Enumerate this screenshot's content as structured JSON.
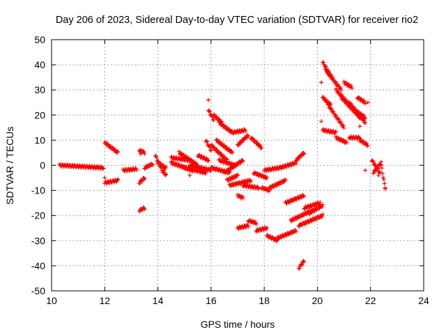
{
  "chart_data": {
    "type": "scatter",
    "title": "Day 206 of 2023, Sidereal Day-to-day VTEC variation (SDTVAR) for receiver rio2",
    "xlabel": "GPS time / hours",
    "ylabel": "SDTVAR / TECUs",
    "xlim": [
      10,
      24
    ],
    "ylim": [
      -50,
      50
    ],
    "xticks": [
      10,
      12,
      14,
      16,
      18,
      20,
      22,
      24
    ],
    "yticks": [
      -50,
      -40,
      -30,
      -20,
      -10,
      0,
      10,
      20,
      30,
      40,
      50
    ],
    "xtick_labels": [
      "10",
      "12",
      "14",
      "16",
      "18",
      "20",
      "22",
      "24"
    ],
    "ytick_labels": [
      "-50",
      "-40",
      "-30",
      "-20",
      "-10",
      "0",
      "10",
      "20",
      "30",
      "40",
      "50"
    ],
    "grid": true,
    "marker": "+",
    "series_color": "#ff0000",
    "segments": [
      {
        "x0": 10.3,
        "x1": 11.95,
        "y0": 0.0,
        "y1": -1.0
      },
      {
        "x0": 12.0,
        "x1": 12.5,
        "y0": -7.0,
        "y1": -6.0
      },
      {
        "x0": 12.0,
        "x1": 12.5,
        "y0": 9.0,
        "y1": 5.0
      },
      {
        "x0": 12.7,
        "x1": 13.2,
        "y0": -2.0,
        "y1": -1.5
      },
      {
        "x0": 13.3,
        "x1": 13.5,
        "y0": 6.0,
        "y1": 5.0
      },
      {
        "x0": 13.3,
        "x1": 13.5,
        "y0": -7.0,
        "y1": -5.0
      },
      {
        "x0": 13.3,
        "x1": 13.5,
        "y0": -18.0,
        "y1": -17.0
      },
      {
        "x0": 13.5,
        "x1": 13.8,
        "y0": -1.0,
        "y1": 0.5
      },
      {
        "x0": 13.9,
        "x1": 14.2,
        "y0": 4.0,
        "y1": -3.0
      },
      {
        "x0": 14.0,
        "x1": 14.3,
        "y0": 1.0,
        "y1": -1.0
      },
      {
        "x0": 14.2,
        "x1": 14.3,
        "y0": -2.0,
        "y1": -4.0
      },
      {
        "x0": 14.5,
        "x1": 15.2,
        "y0": 3.0,
        "y1": 2.0
      },
      {
        "x0": 14.5,
        "x1": 15.3,
        "y0": 1.0,
        "y1": -2.0
      },
      {
        "x0": 14.8,
        "x1": 15.5,
        "y0": 5.0,
        "y1": 0.0
      },
      {
        "x0": 15.0,
        "x1": 15.8,
        "y0": -1.0,
        "y1": -3.0
      },
      {
        "x0": 15.2,
        "x1": 16.0,
        "y0": 0.0,
        "y1": -2.0
      },
      {
        "x0": 15.5,
        "x1": 15.9,
        "y0": 4.0,
        "y1": 2.0
      },
      {
        "x0": 15.8,
        "x1": 16.0,
        "y0": 10.0,
        "y1": 6.0
      },
      {
        "x0": 15.9,
        "x1": 16.1,
        "y0": 22.0,
        "y1": 18.0
      },
      {
        "x0": 16.1,
        "x1": 16.4,
        "y0": 20.0,
        "y1": 17.0
      },
      {
        "x0": 16.3,
        "x1": 16.8,
        "y0": 17.0,
        "y1": 13.0
      },
      {
        "x0": 16.8,
        "x1": 17.3,
        "y0": 13.0,
        "y1": 14.0
      },
      {
        "x0": 16.0,
        "x1": 16.6,
        "y0": 8.0,
        "y1": 2.0
      },
      {
        "x0": 16.2,
        "x1": 16.8,
        "y0": 10.0,
        "y1": 5.0
      },
      {
        "x0": 16.0,
        "x1": 16.7,
        "y0": -1.0,
        "y1": -3.0
      },
      {
        "x0": 16.3,
        "x1": 16.9,
        "y0": 2.0,
        "y1": 0.0
      },
      {
        "x0": 16.5,
        "x1": 17.2,
        "y0": -3.0,
        "y1": 2.0
      },
      {
        "x0": 16.6,
        "x1": 17.0,
        "y0": -6.0,
        "y1": -4.0
      },
      {
        "x0": 17.0,
        "x1": 17.4,
        "y0": 8.0,
        "y1": 12.0
      },
      {
        "x0": 17.5,
        "x1": 17.9,
        "y0": 11.0,
        "y1": 7.0
      },
      {
        "x0": 16.7,
        "x1": 17.5,
        "y0": -8.0,
        "y1": -6.0
      },
      {
        "x0": 17.2,
        "x1": 17.8,
        "y0": -8.0,
        "y1": -9.0
      },
      {
        "x0": 17.0,
        "x1": 17.2,
        "y0": -12.0,
        "y1": -13.0
      },
      {
        "x0": 17.9,
        "x1": 18.2,
        "y0": -9.0,
        "y1": -10.0
      },
      {
        "x0": 17.6,
        "x1": 18.1,
        "y0": -3.0,
        "y1": -5.0
      },
      {
        "x0": 18.0,
        "x1": 18.6,
        "y0": -2.0,
        "y1": -1.0
      },
      {
        "x0": 18.2,
        "x1": 18.8,
        "y0": -9.0,
        "y1": -6.0
      },
      {
        "x0": 18.6,
        "x1": 19.2,
        "y0": -1.0,
        "y1": 1.0
      },
      {
        "x0": 19.2,
        "x1": 19.5,
        "y0": 2.0,
        "y1": 5.0
      },
      {
        "x0": 17.0,
        "x1": 17.4,
        "y0": -25.0,
        "y1": -24.0
      },
      {
        "x0": 17.4,
        "x1": 17.7,
        "y0": -22.0,
        "y1": -23.0
      },
      {
        "x0": 17.7,
        "x1": 18.1,
        "y0": -26.0,
        "y1": -25.0
      },
      {
        "x0": 18.1,
        "x1": 18.5,
        "y0": -28.0,
        "y1": -30.0
      },
      {
        "x0": 18.5,
        "x1": 19.2,
        "y0": -29.0,
        "y1": -26.0
      },
      {
        "x0": 18.8,
        "x1": 19.5,
        "y0": -15.0,
        "y1": -12.0
      },
      {
        "x0": 19.0,
        "x1": 19.8,
        "y0": -22.0,
        "y1": -18.0
      },
      {
        "x0": 19.3,
        "x1": 20.2,
        "y0": -24.0,
        "y1": -20.0
      },
      {
        "x0": 19.5,
        "x1": 20.1,
        "y0": -17.0,
        "y1": -15.0
      },
      {
        "x0": 19.7,
        "x1": 20.2,
        "y0": -19.0,
        "y1": -16.0
      },
      {
        "x0": 19.3,
        "x1": 19.5,
        "y0": -41.0,
        "y1": -38.0
      },
      {
        "x0": 20.2,
        "x1": 20.6,
        "y0": 41.0,
        "y1": 34.0
      },
      {
        "x0": 20.3,
        "x1": 20.9,
        "y0": 38.0,
        "y1": 30.0
      },
      {
        "x0": 20.2,
        "x1": 20.5,
        "y0": 27.0,
        "y1": 24.0
      },
      {
        "x0": 20.4,
        "x1": 21.0,
        "y0": 24.0,
        "y1": 15.0
      },
      {
        "x0": 20.7,
        "x1": 21.3,
        "y0": 30.0,
        "y1": 23.0
      },
      {
        "x0": 20.9,
        "x1": 21.6,
        "y0": 27.0,
        "y1": 19.0
      },
      {
        "x0": 21.2,
        "x1": 21.8,
        "y0": 25.0,
        "y1": 17.0
      },
      {
        "x0": 21.4,
        "x1": 21.8,
        "y0": 22.0,
        "y1": 19.0
      },
      {
        "x0": 21.0,
        "x1": 21.3,
        "y0": 33.0,
        "y1": 31.0
      },
      {
        "x0": 21.5,
        "x1": 21.8,
        "y0": 27.0,
        "y1": 25.0
      },
      {
        "x0": 20.2,
        "x1": 20.7,
        "y0": 14.0,
        "y1": 13.0
      },
      {
        "x0": 20.7,
        "x1": 21.1,
        "y0": 11.0,
        "y1": 9.0
      },
      {
        "x0": 21.2,
        "x1": 21.6,
        "y0": 11.0,
        "y1": 11.0
      },
      {
        "x0": 21.6,
        "x1": 21.9,
        "y0": 10.0,
        "y1": 8.0
      },
      {
        "x0": 22.05,
        "x1": 22.35,
        "y0": 2.0,
        "y1": -3.0
      },
      {
        "x0": 22.1,
        "x1": 22.4,
        "y0": -3.0,
        "y1": 1.0
      },
      {
        "x0": 22.4,
        "x1": 22.55,
        "y0": 0.0,
        "y1": -9.0
      }
    ],
    "points": [
      [
        12.0,
        -5.0
      ],
      [
        15.9,
        26.0
      ],
      [
        20.15,
        33.0
      ],
      [
        20.15,
        17.5
      ],
      [
        21.6,
        15.5
      ],
      [
        21.9,
        25.0
      ],
      [
        21.8,
        -2.0
      ],
      [
        13.35,
        4.5
      ],
      [
        22.55,
        -9.0
      ],
      [
        22.3,
        -4.0
      ],
      [
        15.2,
        -4.0
      ],
      [
        14.3,
        -3.5
      ]
    ]
  }
}
